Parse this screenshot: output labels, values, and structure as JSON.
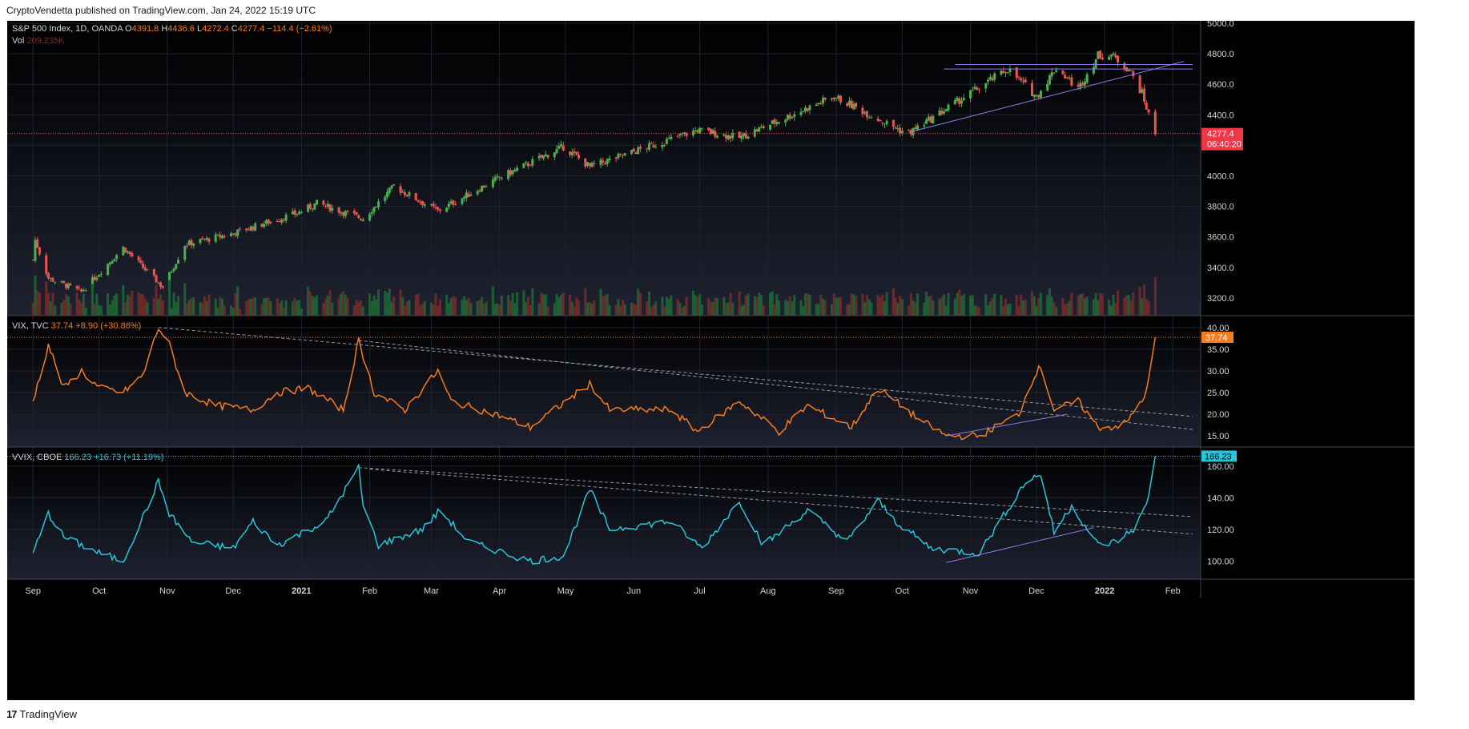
{
  "header": {
    "attribution": "CryptoVendetta published on TradingView.com, Jan 24, 2022 15:19 UTC"
  },
  "footer": {
    "brand": "TradingView",
    "logo_glyph": "17"
  },
  "colors": {
    "bg": "#000000",
    "grid": "#1f2230",
    "up": "#26a69a",
    "up_body": "#4caf50",
    "down": "#ef5350",
    "vix": "#f57c1f",
    "vvix": "#26c6da",
    "trend": "#8c7ae6",
    "dash": "#9598a1",
    "axis_text": "#d1d4dc"
  },
  "panes": {
    "price": {
      "symbol": "S&P 500 Index, 1D, OANDA",
      "ohlc": [
        {
          "k": "O",
          "v": "4391.8"
        },
        {
          "k": "H",
          "v": "4436.6"
        },
        {
          "k": "L",
          "v": "4272.4"
        },
        {
          "k": "C",
          "v": "4277.4"
        }
      ],
      "change": "−114.4 (−2.61%)",
      "vol_label": "Vol",
      "vol_value": "209.235K",
      "last_price": "4277.4",
      "countdown": "06:40:20"
    },
    "vix": {
      "symbol": "VIX, TVC",
      "value": "37.74",
      "change": "+8.90 (+30.86%)",
      "last": "37.74"
    },
    "vvix": {
      "symbol": "VVIX, CBOE",
      "value": "166.23",
      "change": "+16.73 (+11.19%)",
      "last": "166.23"
    }
  },
  "chart_data": [
    {
      "type": "candlestick",
      "title": "S&P 500 Index, 1D, OANDA",
      "ylim": [
        3100,
        5000
      ],
      "yticks": [
        3200,
        3400,
        3600,
        3800,
        4000,
        4200,
        4400,
        4600,
        4800,
        5000
      ],
      "x_labels": [
        "Sep",
        "Oct",
        "Nov",
        "Dec",
        "2021",
        "Feb",
        "Mar",
        "Apr",
        "May",
        "Jun",
        "Jul",
        "Aug",
        "Sep",
        "Oct",
        "Nov",
        "Dec",
        "2022",
        "Feb"
      ],
      "close_path": [
        [
          "2020-09-01",
          3450
        ],
        [
          "2020-09-02",
          3580
        ],
        [
          "2020-09-08",
          3330
        ],
        [
          "2020-09-23",
          3240
        ],
        [
          "2020-10-12",
          3530
        ],
        [
          "2020-10-30",
          3270
        ],
        [
          "2020-11-09",
          3550
        ],
        [
          "2020-11-30",
          3620
        ],
        [
          "2020-12-31",
          3760
        ],
        [
          "2021-01-08",
          3820
        ],
        [
          "2021-01-29",
          3720
        ],
        [
          "2021-02-12",
          3930
        ],
        [
          "2021-03-04",
          3770
        ],
        [
          "2021-03-31",
          3980
        ],
        [
          "2021-04-30",
          4190
        ],
        [
          "2021-05-12",
          4060
        ],
        [
          "2021-06-30",
          4300
        ],
        [
          "2021-07-19",
          4250
        ],
        [
          "2021-08-31",
          4520
        ],
        [
          "2021-09-30",
          4300
        ],
        [
          "2021-10-04",
          4280
        ],
        [
          "2021-11-18",
          4700
        ],
        [
          "2021-12-01",
          4520
        ],
        [
          "2021-12-10",
          4710
        ],
        [
          "2021-12-20",
          4570
        ],
        [
          "2021-12-29",
          4790
        ],
        [
          "2022-01-04",
          4790
        ],
        [
          "2022-01-12",
          4700
        ],
        [
          "2022-01-18",
          4540
        ],
        [
          "2022-01-21",
          4400
        ],
        [
          "2022-01-24",
          4277.4
        ]
      ],
      "volume_max_note": "Vol 209.235K"
    },
    {
      "type": "line",
      "title": "VIX, TVC",
      "ylim": [
        13,
        42
      ],
      "yticks": [
        15,
        20,
        25,
        30,
        35,
        40
      ],
      "points": [
        [
          "2020-09-01",
          23
        ],
        [
          "2020-09-08",
          36
        ],
        [
          "2020-09-15",
          26
        ],
        [
          "2020-09-23",
          30
        ],
        [
          "2020-10-01",
          26
        ],
        [
          "2020-10-12",
          25
        ],
        [
          "2020-10-21",
          29
        ],
        [
          "2020-10-28",
          40
        ],
        [
          "2020-11-02",
          36
        ],
        [
          "2020-11-09",
          25
        ],
        [
          "2020-11-23",
          22
        ],
        [
          "2020-12-10",
          21
        ],
        [
          "2020-12-21",
          25
        ],
        [
          "2021-01-04",
          26
        ],
        [
          "2021-01-20",
          21
        ],
        [
          "2021-01-27",
          37
        ],
        [
          "2021-02-03",
          25
        ],
        [
          "2021-02-17",
          21
        ],
        [
          "2021-03-04",
          30
        ],
        [
          "2021-03-10",
          23
        ],
        [
          "2021-03-30",
          20
        ],
        [
          "2021-04-15",
          17
        ],
        [
          "2021-05-12",
          27
        ],
        [
          "2021-05-21",
          21
        ],
        [
          "2021-06-18",
          21
        ],
        [
          "2021-06-30",
          16
        ],
        [
          "2021-07-19",
          23
        ],
        [
          "2021-08-06",
          16
        ],
        [
          "2021-08-19",
          22
        ],
        [
          "2021-09-08",
          17
        ],
        [
          "2021-09-20",
          26
        ],
        [
          "2021-09-28",
          23
        ],
        [
          "2021-10-08",
          19
        ],
        [
          "2021-10-21",
          15
        ],
        [
          "2021-11-05",
          15
        ],
        [
          "2021-11-23",
          20
        ],
        [
          "2021-11-30",
          29
        ],
        [
          "2021-12-03",
          31
        ],
        [
          "2021-12-09",
          21
        ],
        [
          "2021-12-20",
          23
        ],
        [
          "2021-12-29",
          17
        ],
        [
          "2022-01-04",
          17
        ],
        [
          "2022-01-11",
          18
        ],
        [
          "2022-01-20",
          25
        ],
        [
          "2022-01-24",
          37.74
        ]
      ]
    },
    {
      "type": "line",
      "title": "VVIX, CBOE",
      "ylim": [
        90,
        170
      ],
      "yticks": [
        100,
        120,
        140,
        160
      ],
      "points": [
        [
          "2020-09-01",
          105
        ],
        [
          "2020-09-08",
          130
        ],
        [
          "2020-09-15",
          115
        ],
        [
          "2020-10-01",
          105
        ],
        [
          "2020-10-12",
          100
        ],
        [
          "2020-10-28",
          150
        ],
        [
          "2020-11-02",
          130
        ],
        [
          "2020-11-12",
          112
        ],
        [
          "2020-12-01",
          108
        ],
        [
          "2020-12-10",
          125
        ],
        [
          "2020-12-21",
          110
        ],
        [
          "2021-01-12",
          125
        ],
        [
          "2021-01-27",
          159
        ],
        [
          "2021-01-29",
          135
        ],
        [
          "2021-02-05",
          110
        ],
        [
          "2021-02-25",
          120
        ],
        [
          "2021-03-05",
          132
        ],
        [
          "2021-03-18",
          112
        ],
        [
          "2021-04-15",
          100
        ],
        [
          "2021-04-30",
          103
        ],
        [
          "2021-05-12",
          145
        ],
        [
          "2021-05-21",
          120
        ],
        [
          "2021-06-18",
          125
        ],
        [
          "2021-07-02",
          108
        ],
        [
          "2021-07-19",
          138
        ],
        [
          "2021-07-30",
          110
        ],
        [
          "2021-08-19",
          132
        ],
        [
          "2021-09-06",
          112
        ],
        [
          "2021-09-20",
          138
        ],
        [
          "2021-09-28",
          125
        ],
        [
          "2021-10-14",
          108
        ],
        [
          "2021-11-05",
          105
        ],
        [
          "2021-11-26",
          150
        ],
        [
          "2021-12-03",
          155
        ],
        [
          "2021-12-09",
          118
        ],
        [
          "2021-12-17",
          135
        ],
        [
          "2021-12-29",
          110
        ],
        [
          "2022-01-06",
          112
        ],
        [
          "2022-01-14",
          120
        ],
        [
          "2022-01-20",
          135
        ],
        [
          "2022-01-24",
          166.23
        ]
      ]
    }
  ]
}
